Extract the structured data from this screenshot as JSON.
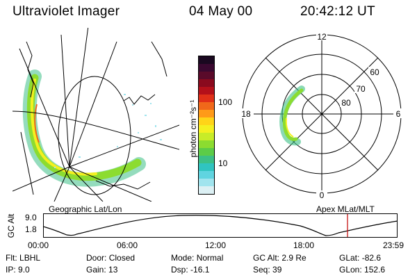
{
  "header": {
    "title": "Ultraviolet Imager",
    "date": "04 May 00",
    "time": "20:42:12 UT"
  },
  "colorbar": {
    "unit_label": "photon cm⁻²s⁻¹",
    "ticks": [
      "100",
      "10"
    ],
    "colors": [
      "#1a0820",
      "#3a0830",
      "#5a0a2a",
      "#8a0a1e",
      "#b4101a",
      "#e03018",
      "#f0681a",
      "#ff9a18",
      "#ffd418",
      "#f4f020",
      "#c8ec28",
      "#8cdc30",
      "#5ccc48",
      "#3cc086",
      "#30c4c0",
      "#60d4e0",
      "#a0e4ee",
      "#dcf0f4"
    ]
  },
  "left_map": {
    "label": "Geographic Lat/Lon"
  },
  "polar_map": {
    "label": "Apex MLat/MLT",
    "mlt_labels": [
      "12",
      "18",
      "6",
      "0"
    ],
    "lat_labels": [
      "60",
      "70",
      "80"
    ]
  },
  "timeline": {
    "axis_label": "GC Alt",
    "y_ticks": [
      "9.0",
      "1.8"
    ],
    "x_ticks": [
      "00:00",
      "06:00",
      "12:00",
      "18:00",
      "23:59"
    ],
    "marker_color": "#c00000"
  },
  "status": {
    "filter": {
      "label": "Flt:",
      "value": "LBHL"
    },
    "ip": {
      "label": "IP:",
      "value": "9.0"
    },
    "door": {
      "label": "Door:",
      "value": "Closed"
    },
    "gain": {
      "label": "Gain:",
      "value": "13"
    },
    "mode": {
      "label": "Mode:",
      "value": "Normal"
    },
    "dsp": {
      "label": "Dsp:",
      "value": "-16.1"
    },
    "gc_alt": {
      "label": "GC Alt:",
      "value": "2.9 Re"
    },
    "seq": {
      "label": "Seq:",
      "value": "39"
    },
    "glat": {
      "label": "GLat:",
      "value": "-82.6"
    },
    "glon": {
      "label": "GLon:",
      "value": "152.6"
    }
  }
}
